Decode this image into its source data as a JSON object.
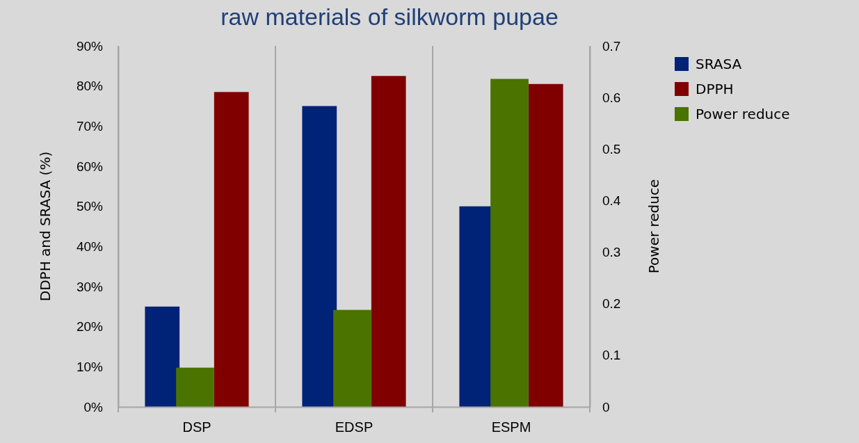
{
  "chart_data": {
    "type": "bar",
    "title": "raw materials of silkworm pupae",
    "ylabel": "DDPH and SRASA (%)",
    "y2label": "Power reduce",
    "categories": [
      "DSP",
      "EDSP",
      "ESPM"
    ],
    "series": [
      {
        "name": "SRASA",
        "color": "#002277",
        "values": [
          25,
          75,
          50
        ]
      },
      {
        "name": "DPPH",
        "color": "#800000",
        "values": [
          78.5,
          82.5,
          80.5
        ]
      },
      {
        "name": "Power reduce",
        "color": "#4a7300",
        "values": [
          0.076,
          0.188,
          0.636
        ],
        "axis": "y2"
      }
    ],
    "ylim": [
      0,
      90
    ],
    "yticks": [
      {
        "value": 0,
        "label": "0%"
      },
      {
        "value": 10,
        "label": "10%"
      },
      {
        "value": 20,
        "label": "20%"
      },
      {
        "value": 30,
        "label": "30%"
      },
      {
        "value": 40,
        "label": "40%"
      },
      {
        "value": 50,
        "label": "50%"
      },
      {
        "value": 60,
        "label": "60%"
      },
      {
        "value": 70,
        "label": "70%"
      },
      {
        "value": 80,
        "label": "80%"
      },
      {
        "value": 90,
        "label": "90%"
      }
    ],
    "y2lim": [
      0,
      0.7
    ],
    "y2ticks": [
      0,
      0.1,
      0.2,
      0.3,
      0.4,
      0.5,
      0.6,
      0.7
    ],
    "grid": "x",
    "legend": "right"
  }
}
